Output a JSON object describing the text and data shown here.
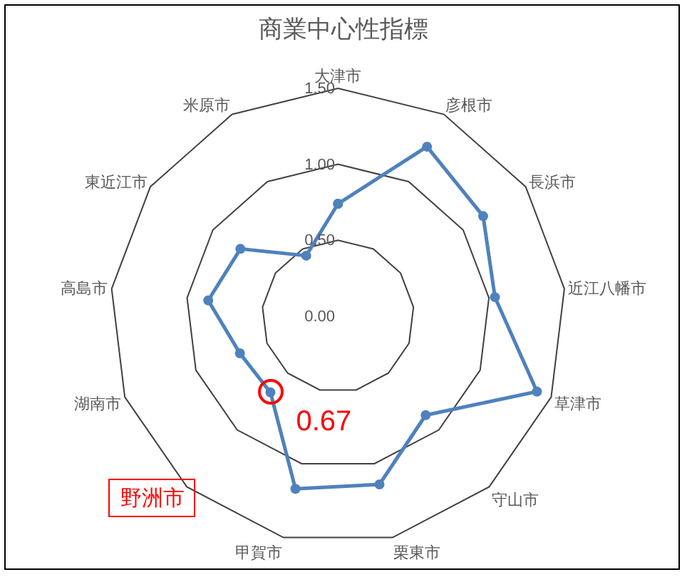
{
  "chart_data": {
    "type": "radar",
    "title": "商業中心性指標",
    "categories": [
      "大津市",
      "彦根市",
      "長浜市",
      "近江八幡市",
      "草津市",
      "守山市",
      "栗東市",
      "甲賀市",
      "野洲市",
      "湖南市",
      "高島市",
      "東近江市",
      "米原市"
    ],
    "series": [
      {
        "color": "#4f81bd",
        "values": [
          0.74,
          1.26,
          1.16,
          1.04,
          1.4,
          0.87,
          1.14,
          1.17,
          0.67,
          0.69,
          0.86,
          0.78,
          0.45
        ],
        "value_labels": [
          null,
          null,
          null,
          null,
          null,
          null,
          null,
          null,
          "0.67",
          null,
          null,
          null,
          null
        ]
      }
    ],
    "ylim": [
      0,
      1.5
    ],
    "yticks": [
      {
        "value": 0,
        "label": "0.00"
      },
      {
        "value": 0.5,
        "label": "0.50"
      },
      {
        "value": 1,
        "label": "1.00"
      },
      {
        "value": 1.5,
        "label": "1.50"
      }
    ],
    "grid": true,
    "marker": "circle",
    "line_style": "solid"
  }
}
